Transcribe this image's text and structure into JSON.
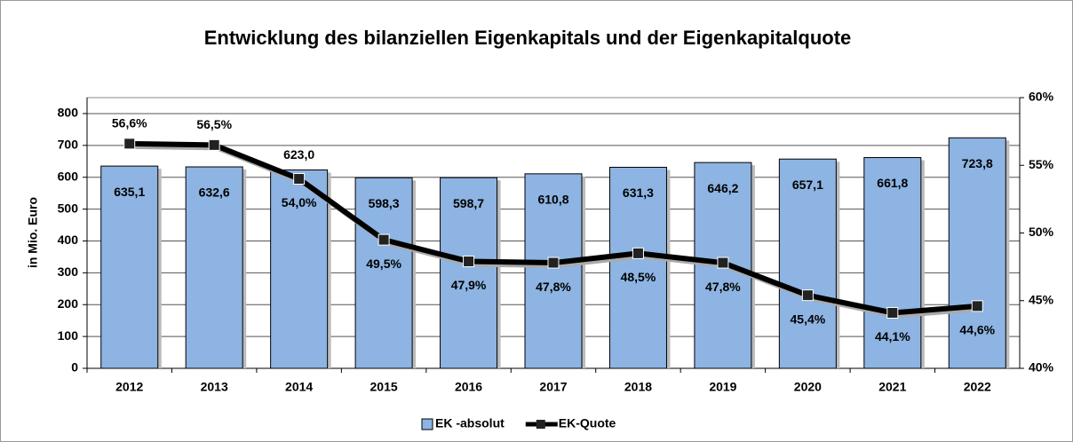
{
  "chart_data": {
    "type": "bar",
    "title": "Entwicklung des bilanziellen Eigenkapitals und der Eigenkapitalquote",
    "y_label": "in Mio. Euro",
    "categories": [
      "2012",
      "2013",
      "2014",
      "2015",
      "2016",
      "2017",
      "2018",
      "2019",
      "2020",
      "2021",
      "2022"
    ],
    "series": [
      {
        "name": "EK -absolut",
        "type": "bar",
        "color": "#8db4e2",
        "values": [
          635.1,
          632.6,
          623.0,
          598.3,
          598.7,
          610.8,
          631.3,
          646.2,
          657.1,
          661.8,
          723.8
        ],
        "value_labels": [
          "635,1",
          "632,6",
          "623,0",
          "598,3",
          "598,7",
          "610,8",
          "631,3",
          "646,2",
          "657,1",
          "661,8",
          "723,8"
        ]
      },
      {
        "name": "EK-Quote",
        "type": "line",
        "axis": "y2",
        "color": "#000000",
        "values": [
          56.6,
          56.5,
          54.0,
          49.5,
          47.9,
          47.8,
          48.5,
          47.8,
          45.4,
          44.1,
          44.6
        ],
        "value_labels": [
          "56,6%",
          "56,5%",
          "54,0%",
          "49,5%",
          "47,9%",
          "47,8%",
          "48,5%",
          "47,8%",
          "45,4%",
          "44,1%",
          "44,6%"
        ]
      }
    ],
    "ylim": [
      0,
      850
    ],
    "yticks": [
      0,
      100,
      200,
      300,
      400,
      500,
      600,
      700,
      800
    ],
    "y2lim": [
      40,
      60
    ],
    "y2ticks": [
      {
        "value": 40,
        "label": "40%"
      },
      {
        "value": 45,
        "label": "45%"
      },
      {
        "value": 50,
        "label": "50%"
      },
      {
        "value": 55,
        "label": "55%"
      },
      {
        "value": 60,
        "label": "60%"
      }
    ],
    "grid": true,
    "legend": "bottom"
  }
}
